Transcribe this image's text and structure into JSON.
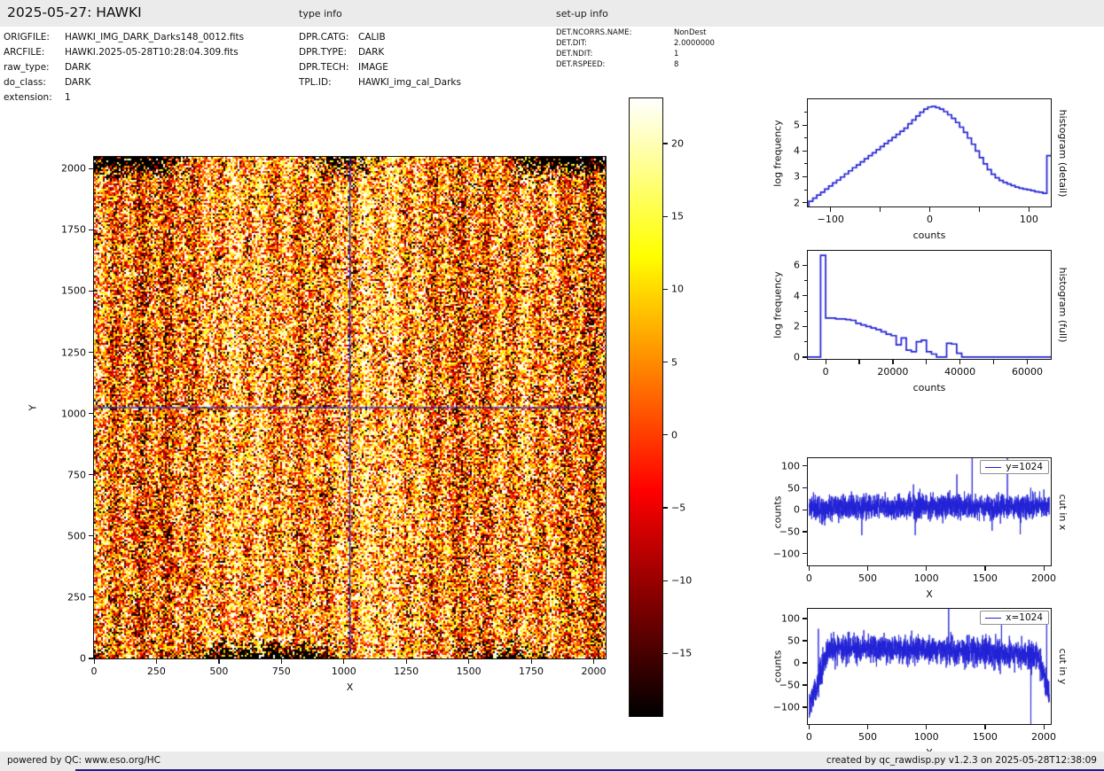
{
  "header": {
    "title": "2025-05-27: HAWKI",
    "type_info_label": "type info",
    "setup_info_label": "set-up info"
  },
  "file_info": {
    "rows": [
      {
        "label": "ORIGFILE:",
        "value": "HAWKI_IMG_DARK_Darks148_0012.fits"
      },
      {
        "label": "ARCFILE:",
        "value": "HAWKI.2025-05-28T10:28:04.309.fits"
      },
      {
        "label": "raw_type:",
        "value": "DARK"
      },
      {
        "label": "do_class:",
        "value": "DARK"
      },
      {
        "label": "extension:",
        "value": "1"
      }
    ]
  },
  "type_info": {
    "rows": [
      {
        "label": "DPR.CATG:",
        "value": "CALIB"
      },
      {
        "label": "DPR.TYPE:",
        "value": "DARK"
      },
      {
        "label": "DPR.TECH:",
        "value": "IMAGE"
      },
      {
        "label": "TPL.ID:",
        "value": "HAWKI_img_cal_Darks"
      }
    ]
  },
  "setup_info": {
    "rows": [
      {
        "label": "DET.NCORRS.NAME:",
        "value": "NonDest"
      },
      {
        "label": "DET.DIT:",
        "value": "2.0000000"
      },
      {
        "label": "DET.NDIT:",
        "value": "1"
      },
      {
        "label": "DET.RSPEED:",
        "value": "8"
      }
    ]
  },
  "footer": {
    "left": "powered by QC: www.eso.org/HC",
    "right": "created by qc_rawdisp.py v1.2.3 on 2025-05-28T12:38:09"
  },
  "colors": {
    "plot_line": "#2121d6",
    "crosshair": "#1f1fd4",
    "header_bg": "#ebebeb",
    "frame": "#141414"
  },
  "chart_data": [
    {
      "id": "main_image",
      "type": "heatmap",
      "xlabel": "X",
      "ylabel": "Y",
      "xlim": [
        0,
        2048
      ],
      "ylim": [
        0,
        2048
      ],
      "xticks": [
        0,
        250,
        500,
        750,
        1000,
        1250,
        1500,
        1750,
        2000
      ],
      "yticks": [
        0,
        250,
        500,
        750,
        1000,
        1250,
        1500,
        1750,
        2000
      ],
      "crosshair": {
        "x": 1024,
        "y": 1024
      },
      "colormap": "hot",
      "value_range": [
        -19.3,
        23.1
      ],
      "noise": {
        "mean": 6,
        "sigma": 13,
        "seed": 5
      },
      "description": "2048x2048 raw dark frame: orange/yellow speckle noise with vertical striping, dark pixel clusters along top and bottom edges, blue crosshair at x=1024 / y=1024"
    },
    {
      "id": "colorbar",
      "type": "colorbar",
      "vlim": [
        -19.3,
        23.1
      ],
      "yticks": [
        20,
        15,
        10,
        5,
        0,
        -5,
        -10,
        -15
      ],
      "colormap": "hot"
    },
    {
      "id": "hist_detail",
      "type": "histogram-line",
      "side_label": "histogram (detail)",
      "xlabel": "counts",
      "ylabel": "log frequency",
      "xlim": [
        -123,
        122
      ],
      "ylim": [
        1.85,
        6.0
      ],
      "xticks": [
        -100,
        0,
        100
      ],
      "xminor": [
        -50,
        50
      ],
      "yticks": [
        2,
        3,
        4,
        5
      ],
      "yminor": [
        2.5,
        3.5,
        4.5,
        5.5
      ],
      "bin_start": -122,
      "bin_width": 4,
      "values": [
        2.05,
        2.17,
        2.29,
        2.4,
        2.52,
        2.64,
        2.76,
        2.87,
        2.99,
        3.11,
        3.23,
        3.35,
        3.46,
        3.58,
        3.7,
        3.82,
        3.93,
        4.05,
        4.17,
        4.29,
        4.4,
        4.52,
        4.64,
        4.76,
        4.88,
        5.05,
        5.2,
        5.35,
        5.5,
        5.62,
        5.7,
        5.72,
        5.68,
        5.62,
        5.52,
        5.4,
        5.26,
        5.1,
        4.92,
        4.72,
        4.5,
        4.26,
        4.0,
        3.74,
        3.5,
        3.28,
        3.1,
        2.96,
        2.86,
        2.78,
        2.72,
        2.66,
        2.6,
        2.56,
        2.52,
        2.5,
        2.46,
        2.42,
        2.4,
        2.36,
        3.82
      ]
    },
    {
      "id": "hist_full",
      "type": "histogram-line",
      "side_label": "histogram (full)",
      "xlabel": "counts",
      "ylabel": "log frequency",
      "xlim": [
        -5300,
        67000
      ],
      "ylim": [
        -0.12,
        6.95
      ],
      "xticks": [
        0,
        20000,
        40000,
        60000
      ],
      "xminor": [
        10000,
        30000,
        50000
      ],
      "yticks": [
        0,
        2,
        4,
        6
      ],
      "yminor": [
        1,
        3,
        5
      ],
      "baseline": true,
      "bin_start": -1500,
      "bin_width": 1500,
      "values": [
        6.65,
        2.55,
        2.55,
        2.5,
        2.5,
        2.45,
        2.4,
        2.2,
        2.1,
        2.0,
        1.9,
        1.8,
        1.65,
        1.5,
        1.4,
        0.8,
        1.25,
        0.45,
        0.35,
        1.0,
        1.1,
        0.35,
        0.2,
        0,
        0,
        0.9,
        0.85,
        0.25,
        0,
        0,
        0,
        0,
        0,
        0,
        0,
        0,
        0,
        0,
        0,
        0,
        0,
        0,
        0,
        0,
        0,
        0
      ]
    },
    {
      "id": "cut_x",
      "type": "line-noise",
      "legend": "y=1024",
      "side_label": "cut in x",
      "xlabel": "X",
      "ylabel": "counts",
      "xlim": [
        -10,
        2060
      ],
      "ylim": [
        -127,
        118
      ],
      "xticks": [
        0,
        500,
        1000,
        1500,
        2000
      ],
      "yticks": [
        -100,
        -50,
        0,
        50,
        100
      ],
      "n": 2048,
      "seed": 11,
      "sigma": 14,
      "trend": [
        [
          0,
          5
        ],
        [
          2048,
          8
        ]
      ],
      "spikes": [
        [
          450,
          -58
        ],
        [
          890,
          58
        ],
        [
          905,
          -58
        ],
        [
          1260,
          81
        ],
        [
          1390,
          132
        ],
        [
          1560,
          -48
        ],
        [
          1690,
          128
        ],
        [
          1800,
          -56
        ]
      ]
    },
    {
      "id": "cut_y",
      "type": "line-noise",
      "legend": "x=1024",
      "side_label": "cut in y",
      "xlabel": "Y",
      "ylabel": "counts",
      "xlim": [
        -10,
        2060
      ],
      "ylim": [
        -138,
        122
      ],
      "xticks": [
        0,
        500,
        1000,
        1500,
        2000
      ],
      "yticks": [
        -100,
        -50,
        0,
        50,
        100
      ],
      "n": 2048,
      "seed": 29,
      "sigma": 16,
      "trend": [
        [
          0,
          -95
        ],
        [
          60,
          -60
        ],
        [
          150,
          25
        ],
        [
          300,
          33
        ],
        [
          900,
          30
        ],
        [
          1500,
          25
        ],
        [
          1950,
          15
        ],
        [
          2000,
          -30
        ],
        [
          2048,
          -70
        ]
      ],
      "spikes": [
        [
          80,
          77
        ],
        [
          210,
          70
        ],
        [
          640,
          68
        ],
        [
          1190,
          133
        ],
        [
          1350,
          60
        ],
        [
          1640,
          95
        ],
        [
          1890,
          -150
        ],
        [
          2025,
          107
        ]
      ]
    }
  ]
}
